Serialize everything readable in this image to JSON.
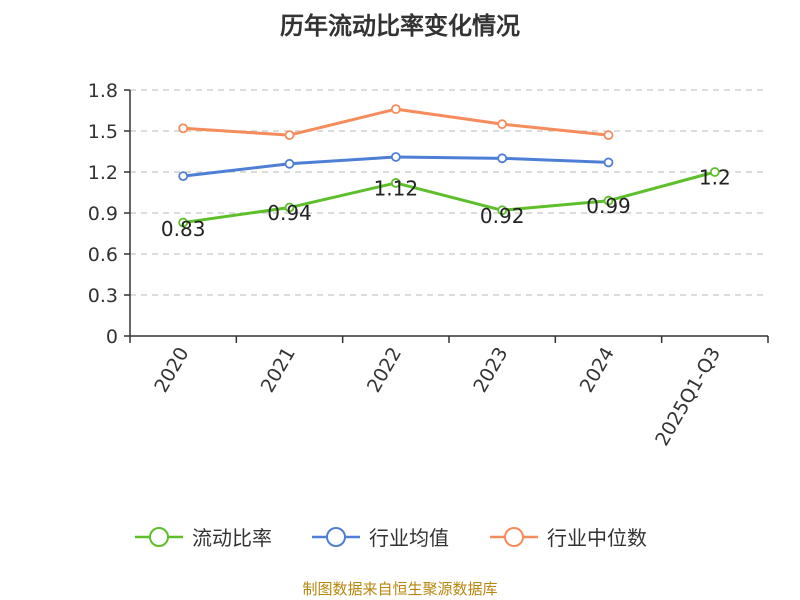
{
  "chart_data": {
    "type": "line",
    "title": "历年流动比率变化情况",
    "categories": [
      "2020",
      "2021",
      "2022",
      "2023",
      "2024",
      "2025Q1-Q3"
    ],
    "ylim": [
      0,
      1.8
    ],
    "yticks": [
      "0",
      "0.3",
      "0.6",
      "0.9",
      "1.2",
      "1.5",
      "1.8"
    ],
    "grid": true,
    "legend_position": "bottom",
    "series": [
      {
        "name": "流动比率",
        "color": "#5dbf2a",
        "values": [
          0.83,
          0.94,
          1.12,
          0.92,
          0.99,
          1.2
        ],
        "labels": [
          "0.83",
          "0.94",
          "1.12",
          "0.92",
          "0.99",
          "1.2"
        ]
      },
      {
        "name": "行业均值",
        "color": "#4e7fd6",
        "values": [
          1.17,
          1.26,
          1.31,
          1.3,
          1.27,
          null
        ]
      },
      {
        "name": "行业中位数",
        "color": "#f68b5b",
        "values": [
          1.52,
          1.47,
          1.66,
          1.55,
          1.47,
          null
        ]
      }
    ]
  },
  "source": "制图数据来自恒生聚源数据库"
}
